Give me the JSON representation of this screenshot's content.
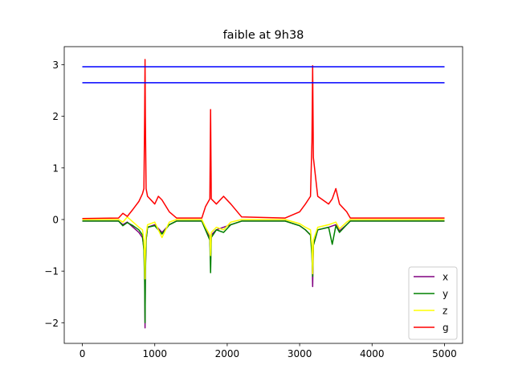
{
  "chart_data": {
    "type": "line",
    "title": "faible at 9h38",
    "xlabel": "",
    "ylabel": "",
    "xlim": [
      -250,
      5250
    ],
    "ylim": [
      -2.4,
      3.35
    ],
    "xticks": [
      0,
      1000,
      2000,
      3000,
      4000,
      5000
    ],
    "xtick_labels": [
      "0",
      "1000",
      "2000",
      "3000",
      "4000",
      "5000"
    ],
    "yticks": [
      -2,
      -1,
      0,
      1,
      2,
      3
    ],
    "ytick_labels": [
      "−2",
      "−1",
      "0",
      "1",
      "2",
      "3"
    ],
    "grid": false,
    "legend_position": "lower-right",
    "series": [
      {
        "name": "x",
        "color": "#800080",
        "points": [
          [
            0,
            -0.03
          ],
          [
            500,
            -0.03
          ],
          [
            560,
            -0.1
          ],
          [
            620,
            -0.05
          ],
          [
            700,
            -0.15
          ],
          [
            780,
            -0.25
          ],
          [
            830,
            -0.35
          ],
          [
            850,
            -0.55
          ],
          [
            860,
            -0.9
          ],
          [
            865,
            -2.1
          ],
          [
            870,
            -1.0
          ],
          [
            880,
            -0.4
          ],
          [
            900,
            -0.15
          ],
          [
            1000,
            -0.1
          ],
          [
            1100,
            -0.25
          ],
          [
            1200,
            -0.1
          ],
          [
            1300,
            -0.03
          ],
          [
            1650,
            -0.03
          ],
          [
            1700,
            -0.2
          ],
          [
            1760,
            -0.35
          ],
          [
            1770,
            -0.75
          ],
          [
            1780,
            -0.3
          ],
          [
            1850,
            -0.2
          ],
          [
            1950,
            -0.15
          ],
          [
            2050,
            -0.1
          ],
          [
            2200,
            -0.03
          ],
          [
            2800,
            -0.03
          ],
          [
            3000,
            -0.12
          ],
          [
            3080,
            -0.2
          ],
          [
            3150,
            -0.3
          ],
          [
            3170,
            -0.55
          ],
          [
            3180,
            -1.3
          ],
          [
            3190,
            -0.5
          ],
          [
            3250,
            -0.2
          ],
          [
            3400,
            -0.15
          ],
          [
            3500,
            -0.1
          ],
          [
            3550,
            -0.22
          ],
          [
            3650,
            -0.1
          ],
          [
            3700,
            -0.03
          ],
          [
            5000,
            -0.03
          ]
        ]
      },
      {
        "name": "y",
        "color": "#008000",
        "points": [
          [
            0,
            -0.03
          ],
          [
            500,
            -0.03
          ],
          [
            560,
            -0.12
          ],
          [
            620,
            -0.06
          ],
          [
            700,
            -0.12
          ],
          [
            780,
            -0.2
          ],
          [
            830,
            -0.3
          ],
          [
            850,
            -0.6
          ],
          [
            860,
            -1.2
          ],
          [
            865,
            -2.0
          ],
          [
            870,
            -1.1
          ],
          [
            880,
            -0.4
          ],
          [
            900,
            -0.15
          ],
          [
            1000,
            -0.12
          ],
          [
            1100,
            -0.28
          ],
          [
            1200,
            -0.1
          ],
          [
            1300,
            -0.03
          ],
          [
            1650,
            -0.03
          ],
          [
            1700,
            -0.2
          ],
          [
            1760,
            -0.4
          ],
          [
            1770,
            -1.03
          ],
          [
            1780,
            -0.35
          ],
          [
            1850,
            -0.2
          ],
          [
            1950,
            -0.25
          ],
          [
            2050,
            -0.1
          ],
          [
            2200,
            -0.03
          ],
          [
            2800,
            -0.03
          ],
          [
            3000,
            -0.12
          ],
          [
            3080,
            -0.2
          ],
          [
            3150,
            -0.3
          ],
          [
            3170,
            -0.7
          ],
          [
            3180,
            -1.1
          ],
          [
            3190,
            -0.5
          ],
          [
            3250,
            -0.2
          ],
          [
            3400,
            -0.15
          ],
          [
            3450,
            -0.48
          ],
          [
            3500,
            -0.12
          ],
          [
            3550,
            -0.25
          ],
          [
            3650,
            -0.1
          ],
          [
            3700,
            -0.03
          ],
          [
            5000,
            -0.03
          ]
        ]
      },
      {
        "name": "z",
        "color": "#ffff00",
        "points": [
          [
            0,
            0.0
          ],
          [
            500,
            0.0
          ],
          [
            560,
            -0.05
          ],
          [
            620,
            0.05
          ],
          [
            700,
            -0.05
          ],
          [
            780,
            -0.15
          ],
          [
            830,
            -0.2
          ],
          [
            850,
            -0.4
          ],
          [
            860,
            -0.8
          ],
          [
            865,
            -1.15
          ],
          [
            870,
            -0.6
          ],
          [
            880,
            -0.3
          ],
          [
            900,
            -0.1
          ],
          [
            1000,
            -0.05
          ],
          [
            1100,
            -0.35
          ],
          [
            1200,
            -0.05
          ],
          [
            1300,
            0.0
          ],
          [
            1650,
            0.0
          ],
          [
            1700,
            -0.15
          ],
          [
            1760,
            -0.3
          ],
          [
            1770,
            -0.7
          ],
          [
            1780,
            -0.25
          ],
          [
            1850,
            -0.15
          ],
          [
            1950,
            -0.2
          ],
          [
            2050,
            -0.05
          ],
          [
            2200,
            0.0
          ],
          [
            2800,
            0.0
          ],
          [
            3000,
            -0.08
          ],
          [
            3080,
            -0.15
          ],
          [
            3150,
            -0.2
          ],
          [
            3170,
            -0.5
          ],
          [
            3180,
            -1.05
          ],
          [
            3190,
            -0.4
          ],
          [
            3250,
            -0.15
          ],
          [
            3400,
            -0.1
          ],
          [
            3500,
            -0.05
          ],
          [
            3550,
            -0.18
          ],
          [
            3650,
            -0.05
          ],
          [
            3700,
            0.0
          ],
          [
            5000,
            0.0
          ]
        ]
      },
      {
        "name": "g",
        "color": "#ff0000",
        "points": [
          [
            0,
            0.02
          ],
          [
            500,
            0.03
          ],
          [
            560,
            0.12
          ],
          [
            620,
            0.06
          ],
          [
            700,
            0.2
          ],
          [
            780,
            0.35
          ],
          [
            830,
            0.5
          ],
          [
            850,
            0.6
          ],
          [
            860,
            2.0
          ],
          [
            865,
            3.1
          ],
          [
            870,
            2.0
          ],
          [
            880,
            0.6
          ],
          [
            900,
            0.45
          ],
          [
            1000,
            0.3
          ],
          [
            1050,
            0.45
          ],
          [
            1100,
            0.38
          ],
          [
            1200,
            0.15
          ],
          [
            1300,
            0.03
          ],
          [
            1650,
            0.03
          ],
          [
            1700,
            0.25
          ],
          [
            1760,
            0.4
          ],
          [
            1770,
            2.13
          ],
          [
            1780,
            0.4
          ],
          [
            1850,
            0.3
          ],
          [
            1950,
            0.45
          ],
          [
            2050,
            0.3
          ],
          [
            2200,
            0.05
          ],
          [
            2800,
            0.03
          ],
          [
            3000,
            0.15
          ],
          [
            3080,
            0.3
          ],
          [
            3150,
            0.45
          ],
          [
            3170,
            1.5
          ],
          [
            3180,
            2.98
          ],
          [
            3190,
            1.2
          ],
          [
            3250,
            0.45
          ],
          [
            3400,
            0.3
          ],
          [
            3450,
            0.4
          ],
          [
            3500,
            0.6
          ],
          [
            3550,
            0.3
          ],
          [
            3650,
            0.15
          ],
          [
            3700,
            0.03
          ],
          [
            5000,
            0.03
          ]
        ]
      },
      {
        "name": "",
        "color": "#0000ff",
        "points": [
          [
            0,
            2.96
          ],
          [
            5000,
            2.96
          ]
        ]
      },
      {
        "name": "",
        "color": "#0000ff",
        "points": [
          [
            0,
            2.65
          ],
          [
            5000,
            2.65
          ]
        ]
      }
    ]
  }
}
